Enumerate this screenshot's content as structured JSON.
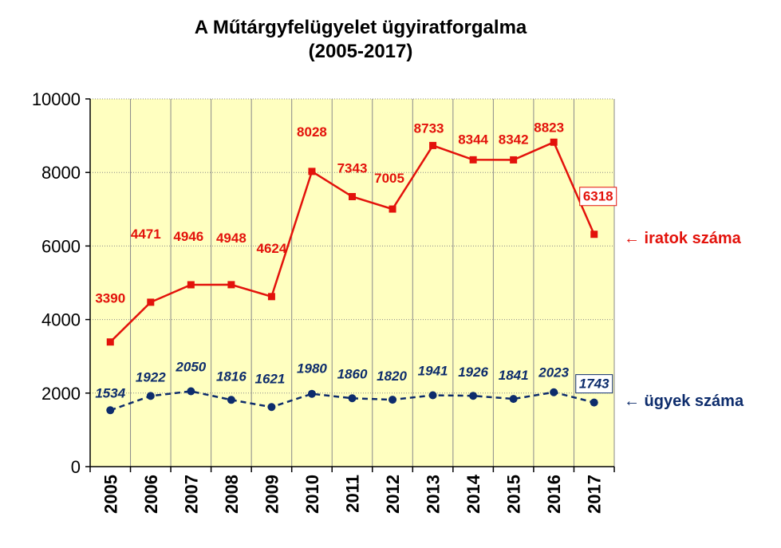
{
  "chart_data": {
    "type": "line",
    "title_line1": "A Műtárgyfelügyelet ügyiratforgalma",
    "title_line2": "(2005-2017)",
    "x": [
      "2005",
      "2006",
      "2007",
      "2008",
      "2009",
      "2010",
      "2011",
      "2012",
      "2013",
      "2014",
      "2015",
      "2016",
      "2017"
    ],
    "ylim": [
      0,
      10000
    ],
    "yticks": [
      0,
      2000,
      4000,
      6000,
      8000,
      10000
    ],
    "grid": true,
    "plot_background": "#ffffc0",
    "series": [
      {
        "name": "← iratok száma",
        "color": "#e3120b",
        "style": "solid",
        "marker": "square",
        "values": [
          3390,
          4471,
          4946,
          4948,
          4624,
          8028,
          7343,
          7005,
          8733,
          8344,
          8342,
          8823,
          6318
        ],
        "labels": [
          "3390",
          "4471",
          "4946",
          "4948",
          "4624",
          "8028",
          "7343",
          "7005",
          "8733",
          "8344",
          "8342",
          "8823",
          "6318"
        ]
      },
      {
        "name": "← ügyek száma",
        "color": "#0d2c6c",
        "style": "dashed",
        "marker": "circle",
        "values": [
          1534,
          1922,
          2050,
          1816,
          1621,
          1980,
          1860,
          1820,
          1941,
          1926,
          1841,
          2023,
          1743
        ],
        "labels": [
          "1534",
          "1922",
          "2050",
          "1816",
          "1621",
          "1980",
          "1860",
          "1820",
          "1941",
          "1926",
          "1841",
          "2023",
          "1743"
        ]
      }
    ]
  }
}
